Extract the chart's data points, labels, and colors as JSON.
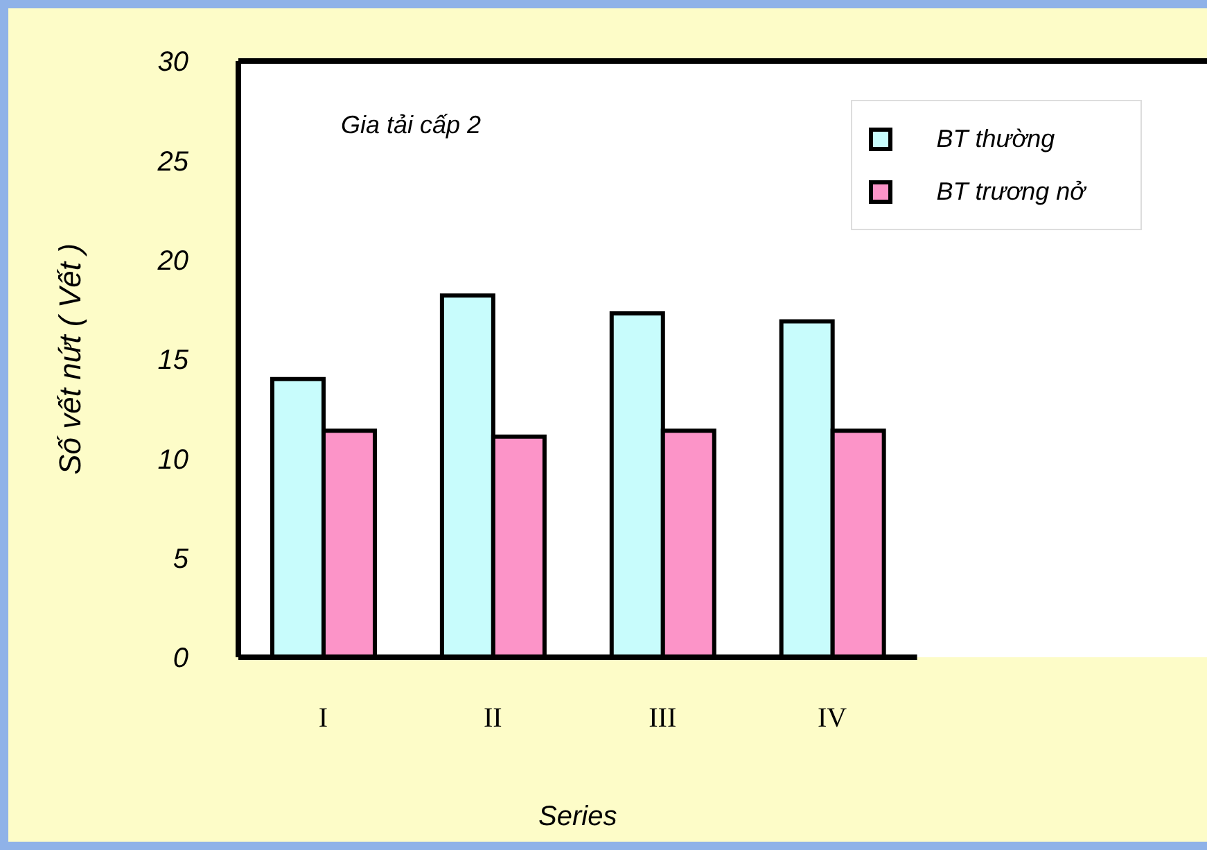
{
  "chart_data": {
    "type": "bar",
    "xlabel": "Series",
    "ylabel": "Số vết nứt  ( Vết )",
    "annotations": [
      "Gia tải cấp 2"
    ],
    "categories": [
      "I",
      "II",
      "III",
      "IV"
    ],
    "series": [
      {
        "name": "BT thường",
        "color": "#c8fcfc",
        "values": [
          14,
          18.2,
          17.3,
          16.9
        ]
      },
      {
        "name": "BT trương nở",
        "color": "#fc94c8",
        "values": [
          11.4,
          11.1,
          11.4,
          11.4
        ]
      }
    ],
    "ylim": [
      0,
      30
    ],
    "yticks": [
      0,
      5,
      10,
      15,
      20,
      25,
      30
    ],
    "grid": false,
    "legend": "top right"
  }
}
